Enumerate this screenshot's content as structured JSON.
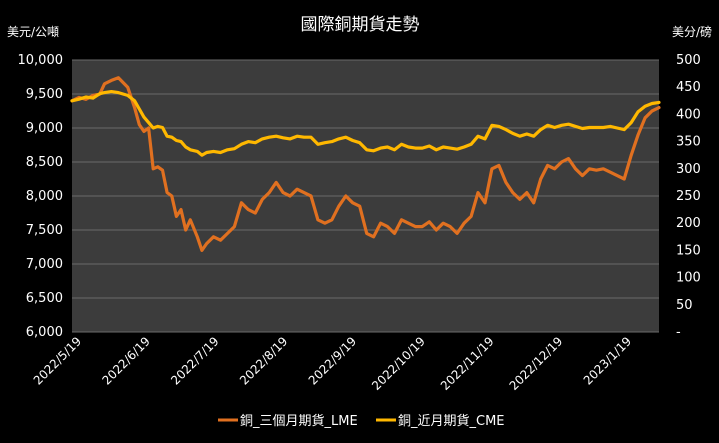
{
  "chart_data": {
    "type": "line",
    "title": "國際銅期貨走勢",
    "y_left_unit": "美元/公噸",
    "y_right_unit": "美分/磅",
    "y_left_lim": [
      6000,
      10000
    ],
    "y_right_lim": [
      0,
      500
    ],
    "y_left_ticks": [
      "6,000",
      "6,500",
      "7,000",
      "7,500",
      "8,000",
      "8,500",
      "9,000",
      "9,500",
      "10,000"
    ],
    "y_right_ticks": [
      "-",
      "50",
      "100",
      "150",
      "200",
      "250",
      "300",
      "350",
      "400",
      "450",
      "500"
    ],
    "x_ticks": [
      "2022/5/19",
      "2022/6/19",
      "2022/7/19",
      "2022/8/19",
      "2022/9/19",
      "2022/10/19",
      "2022/11/19",
      "2022/12/19",
      "2023/1/19"
    ],
    "x_range": [
      "2022-05-19",
      "2023-01-27"
    ],
    "grid": true,
    "legend_position": "bottom",
    "series": [
      {
        "name": "銅_三個月期貨_LME",
        "axis": "left",
        "color": "#e07020",
        "x": [
          "2022-05-19",
          "2022-05-22",
          "2022-05-25",
          "2022-05-28",
          "2022-05-31",
          "2022-06-02",
          "2022-06-05",
          "2022-06-08",
          "2022-06-12",
          "2022-06-15",
          "2022-06-17",
          "2022-06-19",
          "2022-06-21",
          "2022-06-23",
          "2022-06-25",
          "2022-06-27",
          "2022-06-29",
          "2022-07-01",
          "2022-07-03",
          "2022-07-05",
          "2022-07-07",
          "2022-07-09",
          "2022-07-12",
          "2022-07-14",
          "2022-07-16",
          "2022-07-19",
          "2022-07-22",
          "2022-07-25",
          "2022-07-28",
          "2022-07-31",
          "2022-08-03",
          "2022-08-06",
          "2022-08-09",
          "2022-08-12",
          "2022-08-15",
          "2022-08-18",
          "2022-08-21",
          "2022-08-24",
          "2022-08-27",
          "2022-08-30",
          "2022-09-02",
          "2022-09-05",
          "2022-09-08",
          "2022-09-11",
          "2022-09-14",
          "2022-09-17",
          "2022-09-20",
          "2022-09-23",
          "2022-09-26",
          "2022-09-29",
          "2022-10-02",
          "2022-10-05",
          "2022-10-08",
          "2022-10-11",
          "2022-10-14",
          "2022-10-17",
          "2022-10-20",
          "2022-10-23",
          "2022-10-26",
          "2022-10-29",
          "2022-11-01",
          "2022-11-04",
          "2022-11-07",
          "2022-11-10",
          "2022-11-13",
          "2022-11-16",
          "2022-11-19",
          "2022-11-22",
          "2022-11-25",
          "2022-11-28",
          "2022-12-01",
          "2022-12-04",
          "2022-12-07",
          "2022-12-10",
          "2022-12-13",
          "2022-12-16",
          "2022-12-19",
          "2022-12-22",
          "2022-12-25",
          "2022-12-28",
          "2022-12-31",
          "2023-01-03",
          "2023-01-06",
          "2023-01-09",
          "2023-01-12",
          "2023-01-15",
          "2023-01-18",
          "2023-01-21",
          "2023-01-24",
          "2023-01-27"
        ],
        "values": [
          9400,
          9450,
          9420,
          9480,
          9500,
          9650,
          9700,
          9740,
          9600,
          9300,
          9050,
          8950,
          9000,
          8400,
          8430,
          8380,
          8050,
          8000,
          7700,
          7800,
          7500,
          7650,
          7400,
          7200,
          7300,
          7400,
          7350,
          7450,
          7550,
          7900,
          7800,
          7750,
          7950,
          8050,
          8200,
          8050,
          8000,
          8100,
          8050,
          8000,
          7650,
          7600,
          7650,
          7850,
          8000,
          7900,
          7850,
          7450,
          7400,
          7600,
          7550,
          7450,
          7650,
          7600,
          7550,
          7550,
          7620,
          7500,
          7600,
          7550,
          7450,
          7600,
          7700,
          8050,
          7900,
          8400,
          8450,
          8200,
          8050,
          7950,
          8050,
          7900,
          8250,
          8450,
          8400,
          8500,
          8550,
          8400,
          8300,
          8400,
          8380,
          8400,
          8350,
          8300,
          8250,
          8600,
          8900,
          9150,
          9250,
          9300
        ]
      },
      {
        "name": "銅_近月期貨_CME",
        "axis": "right",
        "color": "#ffb800",
        "x": [
          "2022-05-19",
          "2022-05-22",
          "2022-05-25",
          "2022-05-28",
          "2022-05-31",
          "2022-06-02",
          "2022-06-05",
          "2022-06-08",
          "2022-06-12",
          "2022-06-15",
          "2022-06-17",
          "2022-06-19",
          "2022-06-21",
          "2022-06-23",
          "2022-06-25",
          "2022-06-27",
          "2022-06-29",
          "2022-07-01",
          "2022-07-03",
          "2022-07-05",
          "2022-07-07",
          "2022-07-09",
          "2022-07-12",
          "2022-07-14",
          "2022-07-16",
          "2022-07-19",
          "2022-07-22",
          "2022-07-25",
          "2022-07-28",
          "2022-07-31",
          "2022-08-03",
          "2022-08-06",
          "2022-08-09",
          "2022-08-12",
          "2022-08-15",
          "2022-08-18",
          "2022-08-21",
          "2022-08-24",
          "2022-08-27",
          "2022-08-30",
          "2022-09-02",
          "2022-09-05",
          "2022-09-08",
          "2022-09-11",
          "2022-09-14",
          "2022-09-17",
          "2022-09-20",
          "2022-09-23",
          "2022-09-26",
          "2022-09-29",
          "2022-10-02",
          "2022-10-05",
          "2022-10-08",
          "2022-10-11",
          "2022-10-14",
          "2022-10-17",
          "2022-10-20",
          "2022-10-23",
          "2022-10-26",
          "2022-10-29",
          "2022-11-01",
          "2022-11-04",
          "2022-11-07",
          "2022-11-10",
          "2022-11-13",
          "2022-11-16",
          "2022-11-19",
          "2022-11-22",
          "2022-11-25",
          "2022-11-28",
          "2022-12-01",
          "2022-12-04",
          "2022-12-07",
          "2022-12-10",
          "2022-12-13",
          "2022-12-16",
          "2022-12-19",
          "2022-12-22",
          "2022-12-25",
          "2022-12-28",
          "2022-12-31",
          "2023-01-03",
          "2023-01-06",
          "2023-01-09",
          "2023-01-12",
          "2023-01-15",
          "2023-01-18",
          "2023-01-21",
          "2023-01-24",
          "2023-01-27"
        ],
        "values": [
          425,
          428,
          432,
          430,
          438,
          440,
          442,
          440,
          435,
          425,
          410,
          395,
          385,
          375,
          378,
          376,
          360,
          358,
          352,
          350,
          340,
          335,
          332,
          325,
          330,
          332,
          330,
          335,
          337,
          345,
          350,
          348,
          355,
          358,
          360,
          357,
          355,
          360,
          358,
          358,
          345,
          348,
          350,
          355,
          358,
          352,
          348,
          335,
          333,
          338,
          340,
          335,
          345,
          340,
          338,
          338,
          342,
          335,
          340,
          338,
          336,
          340,
          345,
          360,
          355,
          380,
          378,
          372,
          365,
          360,
          364,
          360,
          372,
          380,
          376,
          380,
          382,
          378,
          374,
          376,
          376,
          376,
          378,
          375,
          372,
          385,
          405,
          415,
          420,
          422
        ]
      }
    ]
  }
}
